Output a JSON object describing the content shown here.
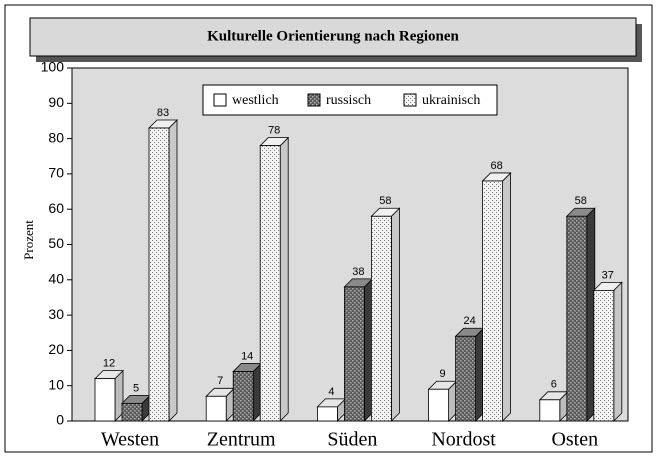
{
  "chart_data": {
    "type": "bar3d",
    "title": "Kulturelle Orientierung nach Regionen",
    "ylabel": "Prozent",
    "categories": [
      "Westen",
      "Zentrum",
      "Süden",
      "Nordost",
      "Osten"
    ],
    "series": [
      {
        "name": "westlich",
        "color": "#ffffff",
        "values": [
          12,
          7,
          4,
          9,
          6
        ]
      },
      {
        "name": "russisch",
        "color": "#707070",
        "values": [
          5,
          14,
          38,
          24,
          58
        ]
      },
      {
        "name": "ukrainisch",
        "color": "#e8e8e8",
        "values": [
          83,
          78,
          58,
          68,
          37
        ]
      }
    ],
    "ylim": [
      0,
      100
    ],
    "yticks": [
      0,
      10,
      20,
      30,
      40,
      50,
      60,
      70,
      80,
      90,
      100
    ],
    "legend": "top"
  }
}
